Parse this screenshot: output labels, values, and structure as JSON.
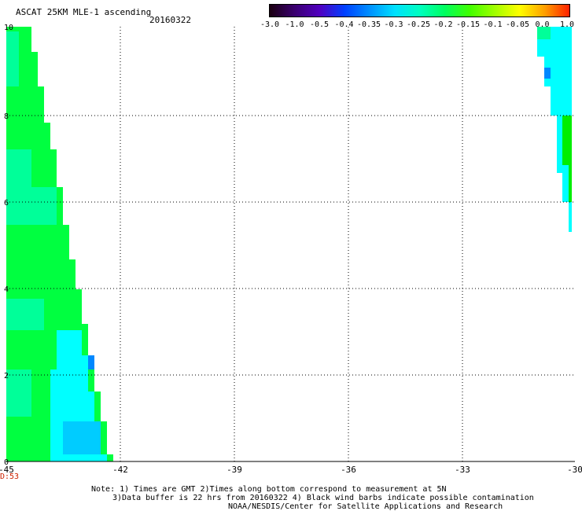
{
  "header": {
    "title": "ASCAT 25KM MLE-1 ascending",
    "date": "20160322"
  },
  "colorbar": {
    "labels": [
      "-3.0",
      "-1.0",
      "-0.5",
      "-0.4",
      "-0.35",
      "-0.3",
      "-0.25",
      "-0.2",
      "-0.15",
      "-0.1",
      "-0.05",
      "0.0",
      "1.0"
    ],
    "gradient": [
      "#1a0010",
      "#3a0070",
      "#5000c0",
      "#0040ff",
      "#0090ff",
      "#00e0ff",
      "#00ffc0",
      "#00ff60",
      "#40ff00",
      "#a0ff00",
      "#ffff00",
      "#ffa000",
      "#ff2000"
    ]
  },
  "map": {
    "x_ticks": [
      "-45",
      "-42",
      "-39",
      "-36",
      "-33",
      "-30"
    ],
    "y_ticks": [
      "0",
      "2",
      "4",
      "6",
      "8",
      "10"
    ],
    "time_label": "D:53",
    "time_color": "#cc2200",
    "colors": {
      "green": "#00ff40",
      "bright_green": "#00ee00",
      "mint": "#00ff99",
      "cyan": "#00ffff",
      "light_blue": "#00ccff",
      "blue": "#0088ff"
    }
  },
  "notes": {
    "line1": "Note: 1) Times are GMT 2)Times along bottom correspond to measurement at 5N",
    "line2": "3)Data buffer is 22 hrs from 20160322 4) Black wind barbs indicate possible contamination",
    "line3": "NOAA/NESDIS/Center for Satellite Applications and Research"
  }
}
